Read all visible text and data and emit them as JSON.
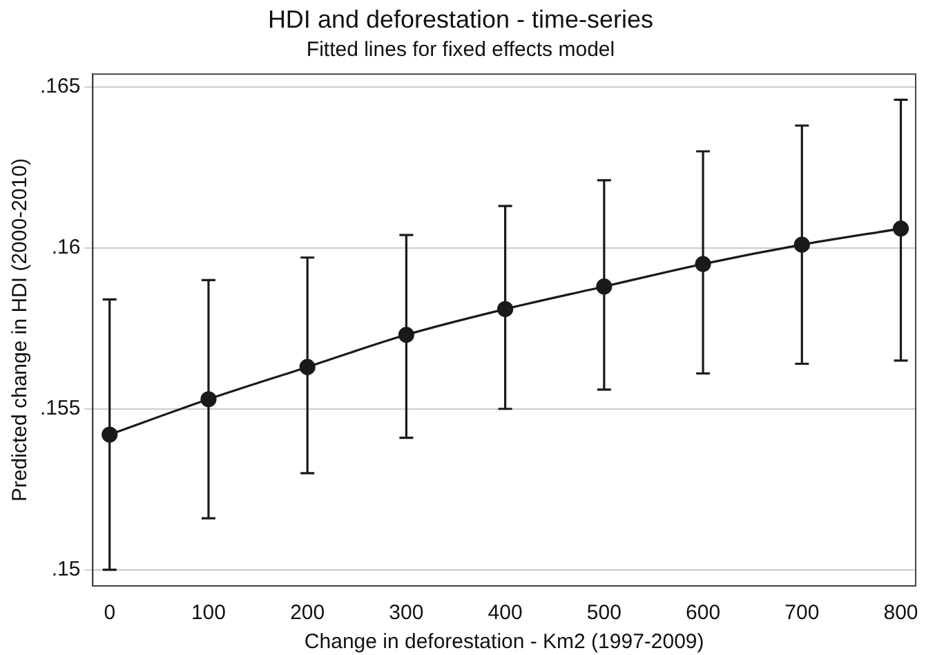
{
  "chart_data": {
    "type": "line",
    "title": "HDI and deforestation - time-series",
    "subtitle": "Fitted lines for fixed effects model",
    "xlabel": "Change in deforestation - Km2 (1997-2009)",
    "ylabel": "Predicted change in HDI (2000-2010)",
    "x": [
      0,
      100,
      200,
      300,
      400,
      500,
      600,
      700,
      800
    ],
    "series": [
      {
        "color": "#1a1a1a",
        "values": [
          0.1542,
          0.1553,
          0.1563,
          0.1573,
          0.1581,
          0.1588,
          0.1595,
          0.1601,
          0.1606
        ],
        "errors": [
          [
            0.15,
            0.1584
          ],
          [
            0.1516,
            0.159
          ],
          [
            0.153,
            0.1597
          ],
          [
            0.1541,
            0.1604
          ],
          [
            0.155,
            0.1613
          ],
          [
            0.1556,
            0.1621
          ],
          [
            0.1561,
            0.163
          ],
          [
            0.1564,
            0.1638
          ],
          [
            0.1565,
            0.1646
          ]
        ]
      }
    ],
    "xlim": [
      -17,
      815
    ],
    "xticks": [
      0,
      100,
      200,
      300,
      400,
      500,
      600,
      700,
      800
    ],
    "ylim": [
      0.1495,
      0.1654
    ],
    "yticks": [
      {
        "value": 0.15,
        "label": ".15"
      },
      {
        "value": 0.155,
        "label": ".155"
      },
      {
        "value": 0.16,
        "label": ".16"
      },
      {
        "value": 0.165,
        "label": ".165"
      }
    ],
    "grid": "y",
    "legend": false,
    "marker": "circle",
    "line_style": "solid"
  }
}
